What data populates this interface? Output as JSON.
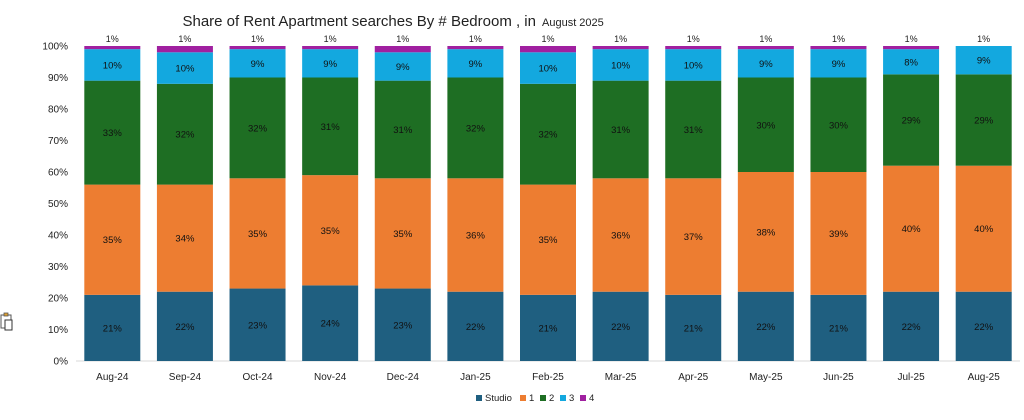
{
  "chart_data": {
    "type": "bar",
    "stacked": true,
    "title": "Share of Rent Apartment searches  By # Bedroom , in",
    "subtitle": "August 2025",
    "xlabel": "",
    "ylabel": "",
    "ylim": [
      0,
      100
    ],
    "y_ticks": [
      "0%",
      "10%",
      "20%",
      "30%",
      "40%",
      "50%",
      "60%",
      "70%",
      "80%",
      "90%",
      "100%"
    ],
    "grid": false,
    "legend_position": "bottom",
    "categories": [
      "Aug-24",
      "Sep-24",
      "Oct-24",
      "Nov-24",
      "Dec-24",
      "Jan-25",
      "Feb-25",
      "Mar-25",
      "Apr-25",
      "May-25",
      "Jun-25",
      "Jul-25",
      "Aug-25"
    ],
    "series": [
      {
        "name": "Studio",
        "color": "#1f5f80",
        "values": [
          21,
          22,
          23,
          24,
          23,
          22,
          21,
          22,
          21,
          22,
          21,
          22,
          22
        ],
        "labels": [
          "21%",
          "22%",
          "23%",
          "24%",
          "23%",
          "22%",
          "21%",
          "22%",
          "21%",
          "22%",
          "21%",
          "22%",
          "22%"
        ]
      },
      {
        "name": "1",
        "color": "#ed7d31",
        "values": [
          35,
          34,
          35,
          35,
          35,
          36,
          35,
          36,
          37,
          38,
          39,
          40,
          40
        ],
        "labels": [
          "35%",
          "34%",
          "35%",
          "35%",
          "35%",
          "36%",
          "35%",
          "36%",
          "37%",
          "38%",
          "39%",
          "40%",
          "40%"
        ]
      },
      {
        "name": "2",
        "color": "#1e6e23",
        "values": [
          33,
          32,
          32,
          31,
          31,
          32,
          32,
          31,
          31,
          30,
          30,
          29,
          29
        ],
        "labels": [
          "33%",
          "32%",
          "32%",
          "31%",
          "31%",
          "32%",
          "32%",
          "31%",
          "31%",
          "30%",
          "30%",
          "29%",
          "29%"
        ]
      },
      {
        "name": "3",
        "color": "#13a8df",
        "values": [
          10,
          10,
          9,
          9,
          9,
          9,
          10,
          10,
          10,
          9,
          9,
          8,
          9
        ],
        "labels": [
          "10%",
          "10%",
          "9%",
          "9%",
          "9%",
          "9%",
          "10%",
          "10%",
          "10%",
          "9%",
          "9%",
          "8%",
          "9%"
        ]
      },
      {
        "name": "4",
        "color": "#a020a0",
        "values": [
          1,
          1,
          1,
          1,
          1,
          1,
          1,
          1,
          1,
          1,
          1,
          1,
          1
        ],
        "labels": [
          "1%",
          "1%",
          "1%",
          "1%",
          "1%",
          "1%",
          "1%",
          "1%",
          "1%",
          "1%",
          "1%",
          "1%",
          "1%"
        ]
      }
    ]
  },
  "ui": {
    "paste_options_icon": "paste-options-icon"
  }
}
